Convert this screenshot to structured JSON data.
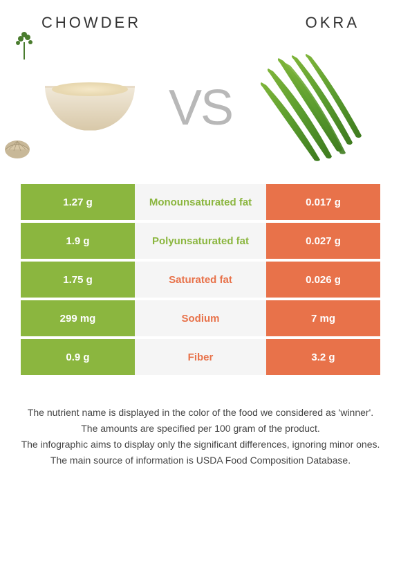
{
  "header": {
    "left_title": "CHOWDER",
    "right_title": "OKRA"
  },
  "vs_label": "VS",
  "colors": {
    "chowder": "#8bb63f",
    "okra": "#e8724a",
    "mid_bg": "#f5f5f5"
  },
  "rows": [
    {
      "left": "1.27 g",
      "name": "Monounsaturated fat",
      "right": "0.017 g",
      "winner": "chowder"
    },
    {
      "left": "1.9 g",
      "name": "Polyunsaturated fat",
      "right": "0.027 g",
      "winner": "chowder"
    },
    {
      "left": "1.75 g",
      "name": "Saturated fat",
      "right": "0.026 g",
      "winner": "okra"
    },
    {
      "left": "299 mg",
      "name": "Sodium",
      "right": "7 mg",
      "winner": "okra"
    },
    {
      "left": "0.9 g",
      "name": "Fiber",
      "right": "3.2 g",
      "winner": "okra"
    }
  ],
  "footer": {
    "line1": "The nutrient name is displayed in the color of the food we considered as 'winner'.",
    "line2": "The amounts are specified per 100 gram of the product.",
    "line3": "The infographic aims to display only the significant differences, ignoring minor ones.",
    "line4": "The main source of information is USDA Food Composition Database."
  }
}
